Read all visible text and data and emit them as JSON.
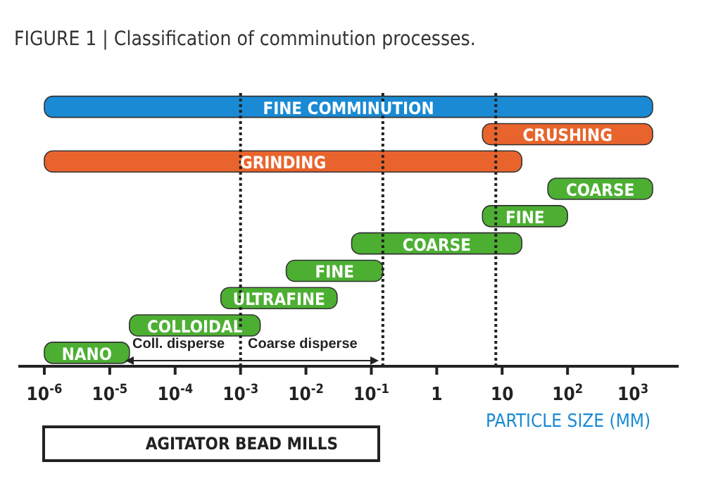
{
  "chart_data": {
    "type": "bar",
    "orientation": "horizontal",
    "title": "FIGURE 1 | Classification of comminution processes.",
    "xlabel": "PARTICLE SIZE (MM)",
    "log": "x",
    "categories": [
      "FINE COMMINUTION",
      "CRUSHING",
      "GRINDING",
      "COARSE",
      "FINE",
      "COARSE",
      "FINE",
      "ULTRAFINE",
      "COLLOIDAL",
      "NANO"
    ],
    "base": [
      1e-06,
      5,
      1e-06,
      50,
      5,
      0.05,
      0.005,
      0.0005,
      2e-05,
      1e-06
    ],
    "values": [
      2000,
      1995,
      20,
      1950,
      95,
      19.95,
      0.145,
      0.0295,
      0.00198,
      1.9e-05
    ],
    "colors": [
      "#1a8ad4",
      "#e8642c",
      "#e8642c",
      "#4caf32",
      "#4caf32",
      "#4caf32",
      "#4caf32",
      "#4caf32",
      "#4caf32",
      "#4caf32"
    ],
    "xlim": [
      4e-07,
      5000
    ],
    "xticks": [
      {
        "value": 1e-06,
        "label": "10$^{-6}$"
      },
      {
        "value": 1e-05,
        "label": "10$^{-5}$"
      },
      {
        "value": 0.0001,
        "label": "10$^{-4}$"
      },
      {
        "value": 0.001,
        "label": "10$^{-3}$"
      },
      {
        "value": 0.01,
        "label": "10$^{-2}$"
      },
      {
        "value": 0.1,
        "label": "10$^{-1}$"
      },
      1,
      10,
      {
        "value": 100,
        "label": "10$^{2}$"
      },
      {
        "value": 1000,
        "label": "10$^{3}$"
      }
    ],
    "ref_lines": [
      {
        "axis": "x",
        "value": 0.001,
        "line_style": "dotted",
        "color": "#222222"
      },
      {
        "axis": "x",
        "value": 0.15,
        "line_style": "dotted",
        "color": "#222222"
      },
      {
        "axis": "x",
        "value": 8,
        "line_style": "dotted",
        "color": "#222222"
      }
    ],
    "annotations": [
      "Coll. disperse",
      "Coarse disperse",
      "AGITATOR BEAD MILLS"
    ]
  }
}
